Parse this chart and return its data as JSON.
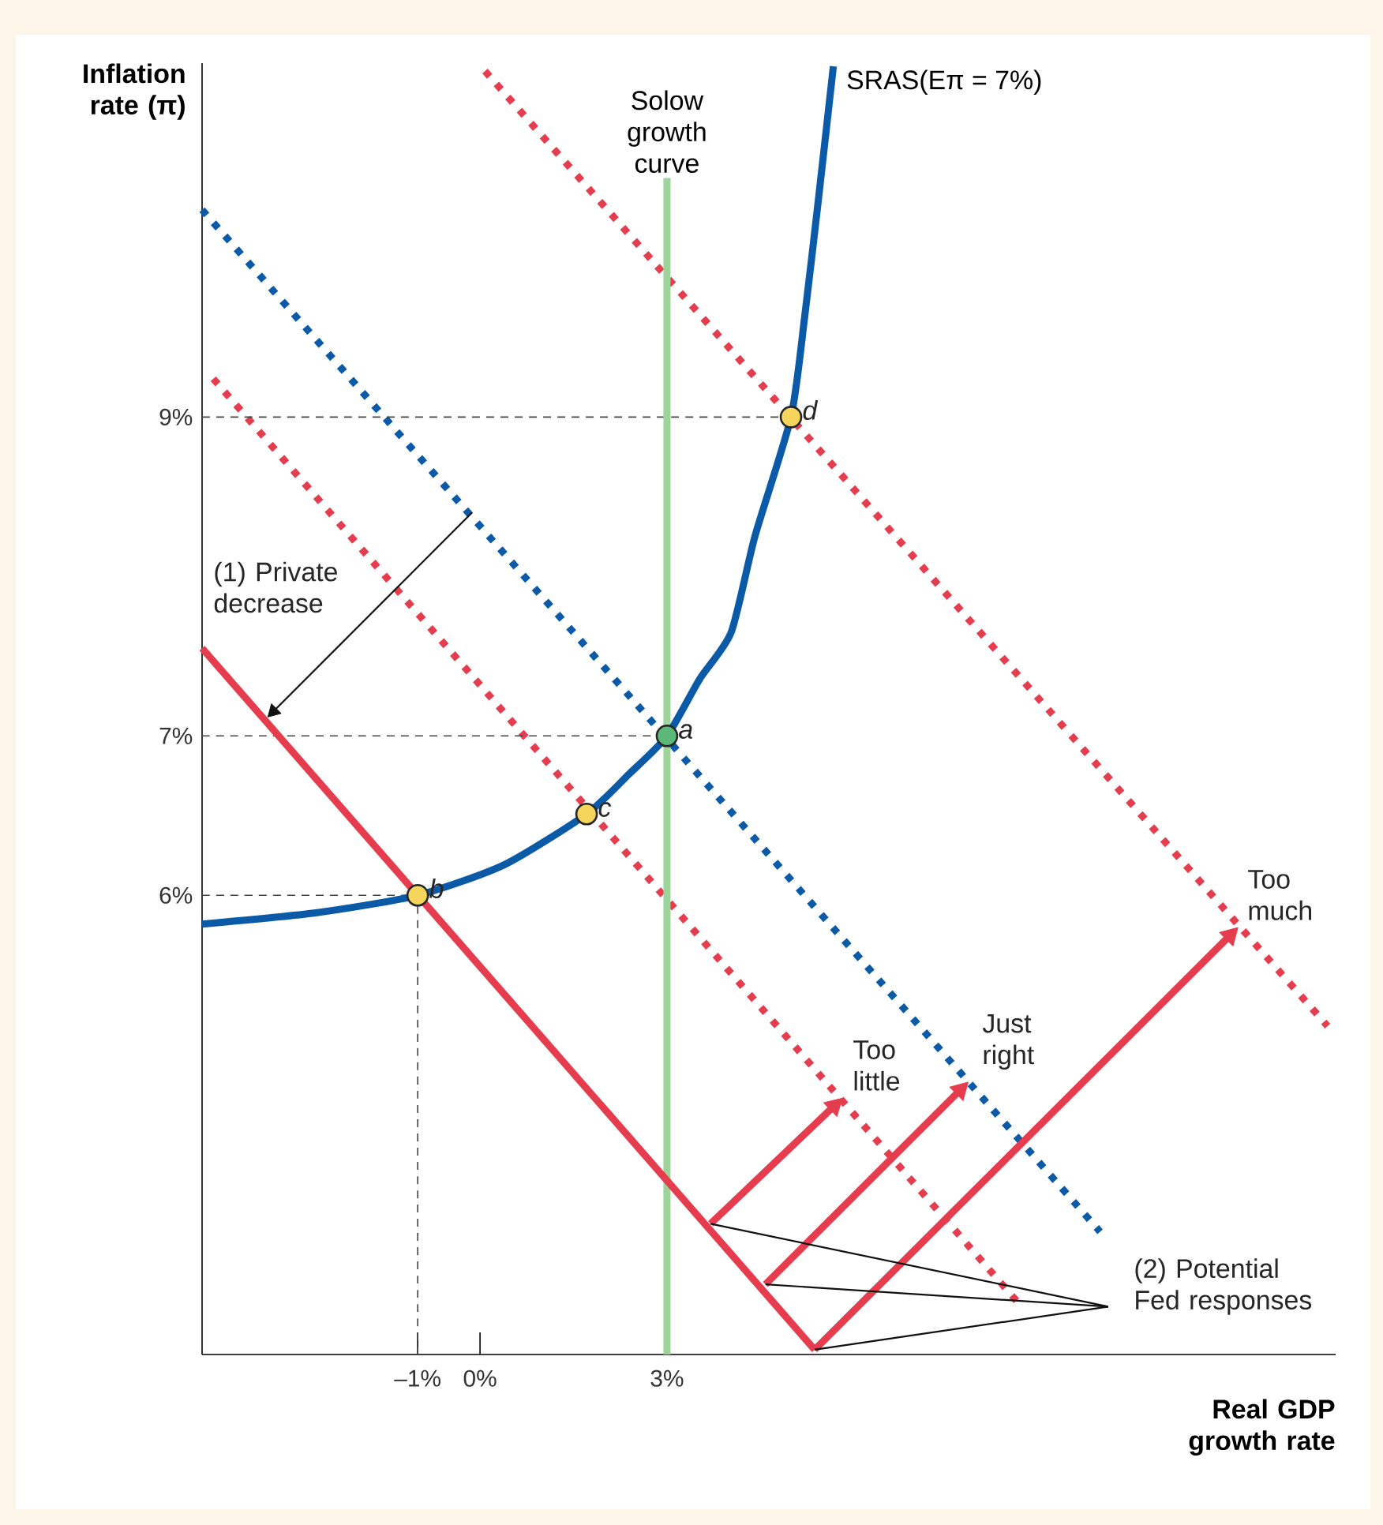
{
  "chart_data": {
    "type": "line",
    "xlabel": "Real GDP growth rate",
    "ylabel": "Inflation rate (π)",
    "xlim": [
      -4.46,
      13.73
    ],
    "ylim": [
      3.12,
      11.22
    ],
    "xticks": [
      {
        "value": -1,
        "label": "–1%"
      },
      {
        "value": 0,
        "label": "0%"
      },
      {
        "value": 3,
        "label": "3%"
      }
    ],
    "yticks": [
      {
        "value": 6,
        "label": "6%"
      },
      {
        "value": 7,
        "label": "7%"
      },
      {
        "value": 9,
        "label": "9%"
      }
    ],
    "series": [
      {
        "color": "#0a5aa8",
        "line_style": "dotted",
        "x": [
          -4.46,
          9.95
        ],
        "values": [
          10.3,
          3.89
        ]
      },
      {
        "color": "#e63d4e",
        "line_style": "dotted",
        "x": [
          -4.28,
          8.69
        ],
        "values": [
          9.24,
          3.42
        ]
      },
      {
        "color": "#e63d4e",
        "line_style": "dotted",
        "x": [
          0.08,
          13.6
        ],
        "values": [
          11.17,
          5.18
        ]
      },
      {
        "color": "#444444",
        "line_style": "dashed",
        "x": [
          -4.46,
          4.99
        ],
        "values": [
          9,
          9
        ]
      },
      {
        "color": "#444444",
        "line_style": "dashed",
        "x": [
          -4.46,
          3
        ],
        "values": [
          7,
          7
        ]
      },
      {
        "color": "#444444",
        "line_style": "dashed",
        "x": [
          -4.46,
          -1
        ],
        "values": [
          6,
          6
        ]
      },
      {
        "color": "#444444",
        "line_style": "dashed",
        "x": [
          -1,
          -1
        ],
        "values": [
          3.12,
          6
        ]
      },
      {
        "name": "Solow growth curve",
        "color": "#9dd49a",
        "x": [
          3,
          3
        ],
        "values": [
          3.12,
          10.5
        ]
      },
      {
        "color": "#e63d4e",
        "x": [
          -4.46,
          5.37
        ],
        "values": [
          7.55,
          3.15
        ]
      },
      {
        "name": "SRAS(Eπ = 7%)",
        "color": "#0a5aa8",
        "x": [
          -4.46,
          -2.64,
          -1,
          0.38,
          1.71,
          2.39,
          3,
          3.53,
          4.03,
          4.41,
          4.99,
          5.21,
          5.42,
          5.67
        ],
        "values": [
          5.82,
          5.89,
          6,
          6.19,
          6.51,
          6.76,
          7,
          7.36,
          7.65,
          8.25,
          9,
          9.63,
          10.33,
          11.2
        ]
      },
      {
        "color": "#111111",
        "marker": "triangle",
        "x": [
          -0.13,
          -3.35
        ],
        "values": [
          8.4,
          7.14
        ]
      },
      {
        "color": "#e63d4e",
        "marker": "triangle",
        "x": [
          3.7,
          5.74
        ],
        "values": [
          3.94,
          4.7
        ]
      },
      {
        "color": "#e63d4e",
        "marker": "triangle",
        "x": [
          4.58,
          7.76
        ],
        "values": [
          3.56,
          4.8
        ]
      },
      {
        "color": "#e63d4e",
        "marker": "triangle",
        "x": [
          5.37,
          12.09
        ],
        "values": [
          3.15,
          5.77
        ]
      },
      {
        "color": "#111111",
        "x": [
          10.08,
          3.7
        ],
        "values": [
          3.42,
          3.94
        ]
      },
      {
        "color": "#111111",
        "x": [
          10.08,
          4.58
        ],
        "values": [
          3.42,
          3.56
        ]
      },
      {
        "color": "#111111",
        "x": [
          10.08,
          5.37
        ],
        "values": [
          3.42,
          3.15
        ]
      },
      {
        "type": "scatter",
        "marker": "circle",
        "x": [
          3,
          -1,
          1.71,
          4.99
        ],
        "values": [
          7,
          6,
          6.51,
          9
        ],
        "colors": [
          "#5cb878",
          "#f6d55c",
          "#f6d55c",
          "#f6d55c"
        ]
      }
    ],
    "annotations": [
      {
        "text": "a",
        "x": 3,
        "y": 7
      },
      {
        "text": "b",
        "x": -1,
        "y": 6
      },
      {
        "text": "c",
        "x": 1.71,
        "y": 6.51
      },
      {
        "text": "d",
        "x": 4.99,
        "y": 9
      },
      "(1) Private decrease",
      "Too little",
      "Just right",
      "Too much",
      "(2) Potential Fed responses"
    ]
  }
}
